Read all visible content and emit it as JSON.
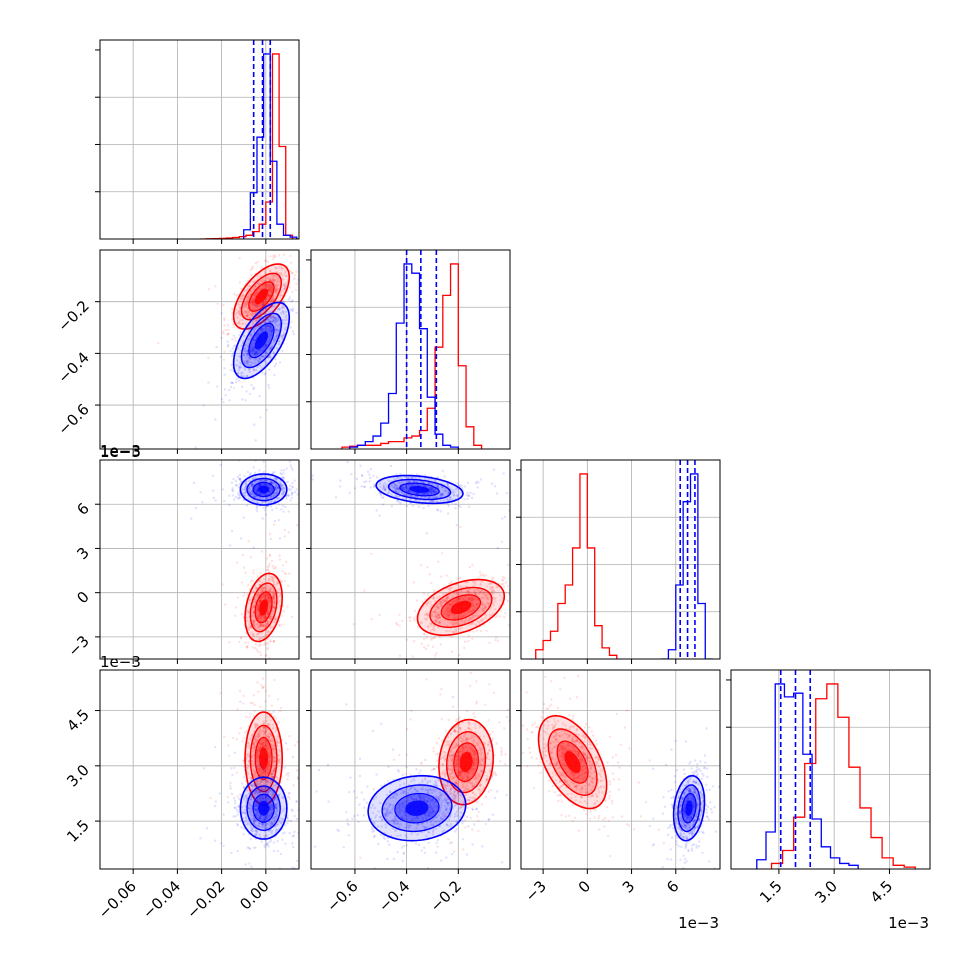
{
  "chart_data": {
    "type": "corner",
    "title": "",
    "parameters": [
      {
        "range": [
          -0.075,
          0.015
        ],
        "ticks": [
          -0.06,
          -0.04,
          -0.02,
          0.0
        ],
        "tick_labels": [
          "−0.06",
          "−0.04",
          "−0.02",
          "0.00"
        ],
        "offset": ""
      },
      {
        "range": [
          -0.77,
          0.0
        ],
        "ticks": [
          -0.6,
          -0.4,
          -0.2
        ],
        "tick_labels": [
          "−0.6",
          "−0.4",
          "−0.2"
        ],
        "offset": ""
      },
      {
        "range": [
          -4.5,
          9.0
        ],
        "ticks": [
          -3,
          0,
          3,
          6
        ],
        "tick_labels": [
          "−3",
          "0",
          "3",
          "6"
        ],
        "offset": "1e−3"
      },
      {
        "range": [
          0.2,
          5.6
        ],
        "ticks": [
          1.5,
          3.0,
          4.5
        ],
        "tick_labels": [
          "1.5",
          "3.0",
          "4.5"
        ],
        "offset": "1e−3"
      }
    ],
    "series": [
      {
        "color": "#ff0000",
        "params": [
          {
            "edges": [
              -0.075,
              -0.0045
            ],
            "counts": [
              0.0,
              0.001,
              0.002,
              0.003,
              0.005,
              0.008,
              0.013,
              0.02,
              0.04,
              0.08,
              0.2,
              1.0,
              0.5,
              0.02,
              0.0
            ],
            "start": -0.03,
            "width": 0.003
          },
          {
            "start": -0.65,
            "width": 0.03,
            "counts": [
              0.01,
              0.015,
              0.02,
              0.02,
              0.02,
              0.03,
              0.04,
              0.04,
              0.06,
              0.07,
              0.1,
              0.22,
              0.55,
              0.83,
              1.0,
              0.45,
              0.12,
              0.02
            ]
          },
          {
            "start": -3.5,
            "width": 0.5,
            "counts": [
              0.05,
              0.1,
              0.15,
              0.3,
              0.4,
              0.6,
              1.0,
              0.6,
              0.18,
              0.06,
              0.02
            ]
          },
          {
            "start": 1.3,
            "width": 0.3,
            "counts": [
              0.03,
              0.1,
              0.28,
              0.57,
              0.92,
              1.0,
              0.82,
              0.55,
              0.33,
              0.17,
              0.06,
              0.02,
              0.01
            ]
          }
        ],
        "points": [
          {
            "p": [
              0,
              1
            ],
            "mean": [
              -0.002,
              -0.18
            ],
            "sd": [
              0.006,
              0.06
            ],
            "rho": 0.6
          },
          {
            "p": [
              0,
              2
            ],
            "mean": [
              -0.001,
              -1.0
            ],
            "sd": [
              0.004,
              1.1
            ],
            "rho": 0.3
          },
          {
            "p": [
              0,
              3
            ],
            "mean": [
              -0.001,
              3.2
            ],
            "sd": [
              0.004,
              0.6
            ],
            "rho": 0.0
          },
          {
            "p": [
              1,
              2
            ],
            "mean": [
              -0.19,
              -1.0
            ],
            "sd": [
              0.08,
              0.9
            ],
            "rho": 0.4
          },
          {
            "p": [
              1,
              3
            ],
            "mean": [
              -0.17,
              3.1
            ],
            "sd": [
              0.05,
              0.55
            ],
            "rho": 0.1
          },
          {
            "p": [
              2,
              3
            ],
            "mean": [
              -1.0,
              3.1
            ],
            "sd": [
              1.1,
              0.6
            ],
            "rho": -0.5
          }
        ]
      },
      {
        "color": "#0000ff",
        "params": [
          {
            "start": -0.01,
            "width": 0.003,
            "counts": [
              0.05,
              0.25,
              0.55,
              1.0,
              0.42,
              0.08,
              0.02,
              0.01
            ]
          },
          {
            "start": -0.62,
            "width": 0.03,
            "counts": [
              0.01,
              0.02,
              0.04,
              0.07,
              0.14,
              0.3,
              0.68,
              1.0,
              0.95,
              0.65,
              0.28,
              0.08,
              0.02,
              0.01
            ]
          },
          {
            "start": 5.0,
            "width": 0.5,
            "counts": [
              0.0,
              0.05,
              0.4,
              0.85,
              1.0,
              0.3,
              0.0
            ]
          },
          {
            "start": 0.9,
            "width": 0.25,
            "counts": [
              0.05,
              0.2,
              1.0,
              0.93,
              0.95,
              0.62,
              0.27,
              0.12,
              0.06,
              0.03,
              0.02
            ]
          }
        ],
        "quantile_lines": [
          [
            -0.0055,
            -0.0015,
            0.002
          ],
          [
            -0.4,
            -0.345,
            -0.285
          ],
          [
            6.3,
            6.8,
            7.3
          ],
          [
            1.55,
            1.95,
            2.35
          ]
        ],
        "points": [
          {
            "p": [
              0,
              1
            ],
            "mean": [
              -0.002,
              -0.35
            ],
            "sd": [
              0.006,
              0.07
            ],
            "rho": 0.6
          },
          {
            "p": [
              0,
              2
            ],
            "mean": [
              -0.001,
              7.0
            ],
            "sd": [
              0.005,
              0.5
            ],
            "rho": 0.0
          },
          {
            "p": [
              0,
              3
            ],
            "mean": [
              -0.001,
              1.85
            ],
            "sd": [
              0.005,
              0.4
            ],
            "rho": 0.0
          },
          {
            "p": [
              1,
              2
            ],
            "mean": [
              -0.35,
              7.0
            ],
            "sd": [
              0.08,
              0.45
            ],
            "rho": -0.3
          },
          {
            "p": [
              1,
              3
            ],
            "mean": [
              -0.36,
              1.85
            ],
            "sd": [
              0.09,
              0.42
            ],
            "rho": 0.1
          },
          {
            "p": [
              2,
              3
            ],
            "mean": [
              6.9,
              1.85
            ],
            "sd": [
              0.5,
              0.42
            ],
            "rho": 0.2
          }
        ]
      }
    ]
  }
}
